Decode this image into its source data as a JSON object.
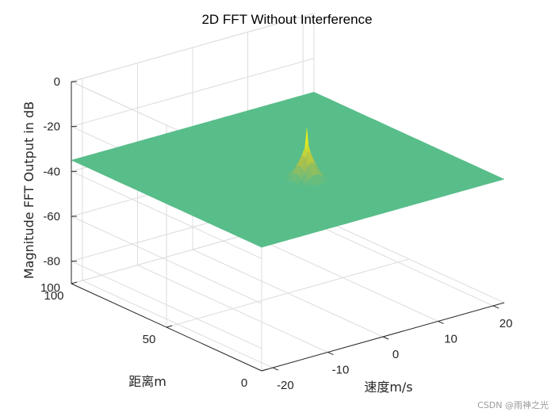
{
  "chart_data": {
    "type": "surface",
    "title": "2D FFT Without Interference",
    "xlabel": "速度m/s",
    "ylabel": "距离m",
    "zlabel": "Magnitude FFT Output in dB",
    "x_ticks": [
      "-20",
      "-10",
      "0",
      "10",
      "20"
    ],
    "y_ticks": [
      "0",
      "50",
      "100"
    ],
    "z_ticks": [
      "0",
      "-20",
      "-40",
      "-60",
      "-80",
      "100"
    ],
    "xlim": [
      -22,
      22
    ],
    "ylim": [
      0,
      100
    ],
    "zlim": [
      -90,
      0
    ],
    "grid": true,
    "colormap": "parula",
    "features": [
      {
        "name": "peak",
        "velocity": 0,
        "range": 40,
        "magnitude_db": -13
      },
      {
        "name": "range-ridge",
        "range": 40,
        "magnitude_db_at_edges": -50
      },
      {
        "name": "velocity-ridge",
        "velocity": 0,
        "magnitude_db_far_range": -48
      },
      {
        "name": "noise-floor",
        "magnitude_db": -82
      }
    ]
  },
  "watermark": "CSDN @雨神之光",
  "colors": {
    "axis": "#262626",
    "grid": "#dcdcdc",
    "low": "#3e26a8",
    "high": "#f9fb0e"
  }
}
